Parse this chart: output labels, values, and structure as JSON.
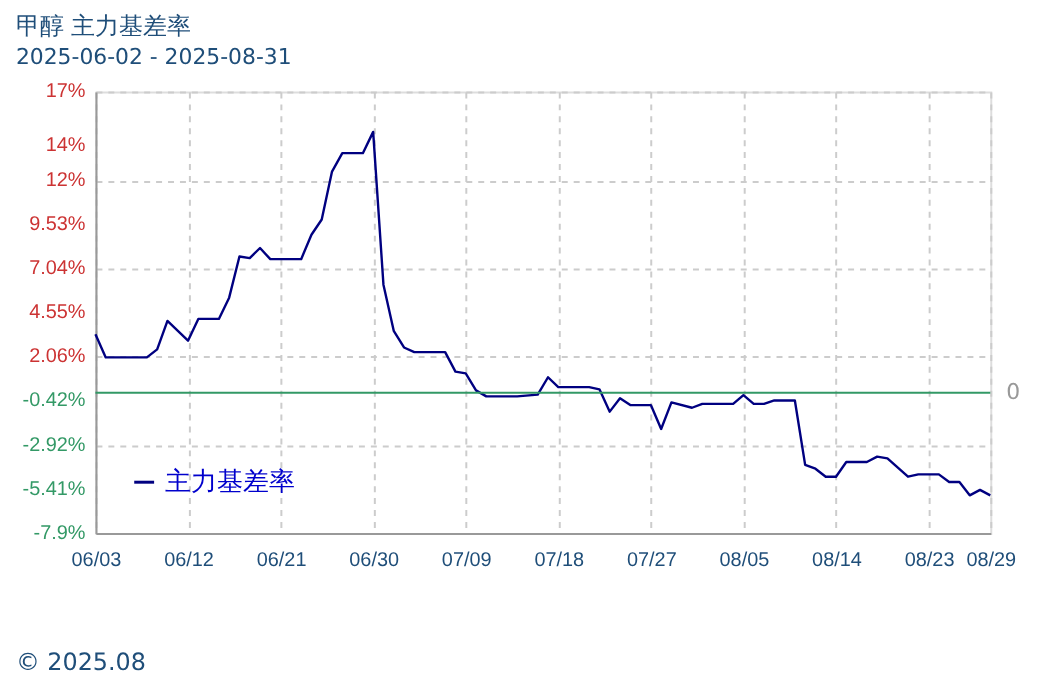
{
  "chart_data": {
    "type": "line",
    "title": "甲醇 主力基差率",
    "subtitle": "2025-06-02 - 2025-08-31",
    "x": [
      "2025-06-03",
      "2025-06-04",
      "2025-06-08",
      "2025-06-09",
      "2025-06-10",
      "2025-06-12",
      "2025-06-13",
      "2025-06-15",
      "2025-06-16",
      "2025-06-17",
      "2025-06-18",
      "2025-06-19",
      "2025-06-20",
      "2025-06-23",
      "2025-06-24",
      "2025-06-25",
      "2025-06-26",
      "2025-06-27",
      "2025-06-29",
      "2025-06-30",
      "2025-07-01",
      "2025-07-02",
      "2025-07-03",
      "2025-07-04",
      "2025-07-07",
      "2025-07-08",
      "2025-07-09",
      "2025-07-10",
      "2025-07-11",
      "2025-07-14",
      "2025-07-16",
      "2025-07-17",
      "2025-07-18",
      "2025-07-21",
      "2025-07-22",
      "2025-07-23",
      "2025-07-24",
      "2025-07-25",
      "2025-07-27",
      "2025-07-28",
      "2025-07-29",
      "2025-07-31",
      "2025-08-01",
      "2025-08-04",
      "2025-08-05",
      "2025-08-06",
      "2025-08-07",
      "2025-08-08",
      "2025-08-10",
      "2025-08-11",
      "2025-08-12",
      "2025-08-13",
      "2025-08-14",
      "2025-08-15",
      "2025-08-17",
      "2025-08-18",
      "2025-08-19",
      "2025-08-21",
      "2025-08-22",
      "2025-08-24",
      "2025-08-25",
      "2025-08-26",
      "2025-08-27",
      "2025-08-28",
      "2025-08-29"
    ],
    "series": [
      {
        "name": "主力基差率",
        "color": "#000080",
        "values": [
          3.3,
          2.0,
          2.0,
          2.45,
          4.06,
          2.94,
          4.17,
          4.17,
          5.37,
          7.69,
          7.6,
          8.17,
          7.54,
          7.54,
          8.92,
          9.78,
          12.48,
          13.52,
          13.52,
          14.72,
          6.1,
          3.5,
          2.56,
          2.3,
          2.3,
          1.2,
          1.1,
          0.14,
          -0.2,
          -0.2,
          -0.1,
          0.88,
          0.32,
          0.32,
          0.2,
          -1.06,
          -0.31,
          -0.69,
          -0.69,
          -2.04,
          -0.54,
          -0.84,
          -0.62,
          -0.62,
          -0.13,
          -0.62,
          -0.62,
          -0.43,
          -0.43,
          -4.06,
          -4.28,
          -4.73,
          -4.73,
          -3.9,
          -3.9,
          -3.6,
          -3.7,
          -4.73,
          -4.6,
          -4.6,
          -5.03,
          -5.03,
          -5.78,
          -5.47,
          -5.78
        ]
      }
    ],
    "xlim": [
      "2025-06-03",
      "2025-08-29"
    ],
    "xticks": [
      {
        "value": "2025-06-03",
        "label": "06/03"
      },
      {
        "value": "2025-06-12",
        "label": "06/12"
      },
      {
        "value": "2025-06-21",
        "label": "06/21"
      },
      {
        "value": "2025-06-30",
        "label": "06/30"
      },
      {
        "value": "2025-07-09",
        "label": "07/09"
      },
      {
        "value": "2025-07-18",
        "label": "07/18"
      },
      {
        "value": "2025-07-27",
        "label": "07/27"
      },
      {
        "value": "2025-08-05",
        "label": "08/05"
      },
      {
        "value": "2025-08-14",
        "label": "08/14"
      },
      {
        "value": "2025-08-23",
        "label": "08/23"
      },
      {
        "value": "2025-08-29",
        "label": "08/29"
      }
    ],
    "ylim": [
      -7.9,
      17
    ],
    "yticks": [
      {
        "value": 17,
        "label": "17%"
      },
      {
        "value": 14,
        "label": "14%"
      },
      {
        "value": 12,
        "label": "12%"
      },
      {
        "value": 9.53,
        "label": "9.53%"
      },
      {
        "value": 7.04,
        "label": "7.04%"
      },
      {
        "value": 4.55,
        "label": "4.55%"
      },
      {
        "value": 2.06,
        "label": "2.06%"
      },
      {
        "value": -0.42,
        "label": "-0.42%"
      },
      {
        "value": -2.92,
        "label": "-2.92%"
      },
      {
        "value": -5.41,
        "label": "-5.41%"
      },
      {
        "value": -7.9,
        "label": "-7.9%"
      }
    ],
    "ref_lines": [
      {
        "axis": "y",
        "value": 0,
        "label": "0",
        "color": "#339966"
      }
    ],
    "grid": true,
    "legend": "bottom left",
    "marker": "none",
    "line_style": "solid",
    "annotations": [
      "© 2025.08"
    ]
  }
}
